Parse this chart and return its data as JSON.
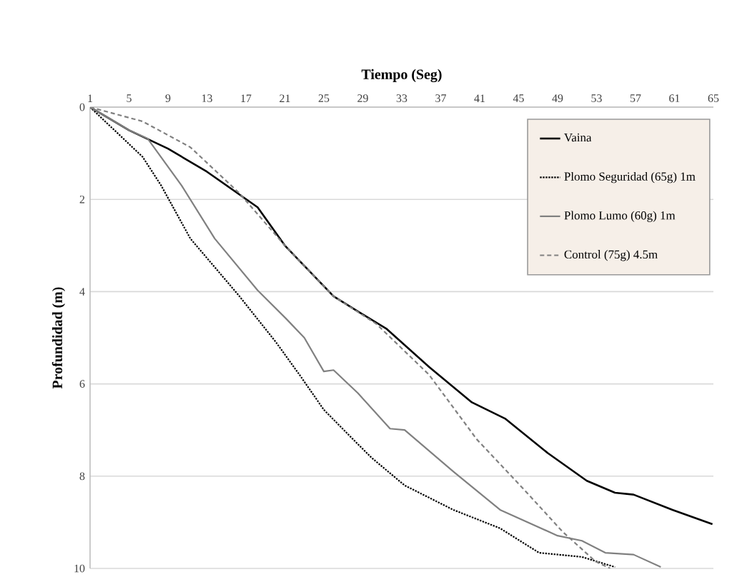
{
  "chart_data": {
    "type": "line",
    "xlabel": "Tiempo (Seg)",
    "ylabel": "Profundidad (m)",
    "xlim": [
      1,
      65
    ],
    "xticks": [
      1,
      5,
      9,
      13,
      17,
      21,
      25,
      29,
      33,
      37,
      41,
      45,
      49,
      53,
      57,
      61,
      65
    ],
    "ylim": [
      10,
      0
    ],
    "yticks": [
      0,
      2,
      4,
      6,
      8,
      10
    ],
    "grid": "y",
    "legend": "top right",
    "marker": "none",
    "series": [
      {
        "name": "Vaina",
        "color": "#000000",
        "line_style": "solid",
        "x": [
          1,
          5,
          9,
          13,
          18.2,
          21,
          26,
          28.5,
          31.4,
          35.8,
          40.2,
          43.6,
          48,
          52,
          54.9,
          56.8,
          60.8,
          64.9
        ],
        "values": [
          0,
          0.5,
          0.9,
          1.4,
          2.17,
          3.0,
          4.1,
          4.43,
          4.8,
          5.63,
          6.4,
          6.75,
          7.5,
          8.1,
          8.36,
          8.4,
          8.73,
          9.04
        ]
      },
      {
        "name": "Plomo Seguridad  (65g) 1m",
        "color": "#000000",
        "line_style": "dotted",
        "x": [
          1,
          3,
          6.4,
          8.3,
          11.3,
          16.3,
          20.1,
          22.6,
          25,
          28,
          29.9,
          33.3,
          38.3,
          43.1,
          47.1,
          51.5,
          54.9
        ],
        "values": [
          0,
          0.4,
          1.08,
          1.7,
          2.85,
          4.09,
          5.1,
          5.83,
          6.56,
          7.2,
          7.6,
          8.2,
          8.73,
          9.13,
          9.66,
          9.75,
          9.97
        ]
      },
      {
        "name": "Plomo Lumo (60g) 1m",
        "color": "#808080",
        "line_style": "solid",
        "x": [
          1,
          5,
          6.9,
          10.4,
          13.8,
          18.2,
          21.1,
          23,
          25,
          26,
          28.5,
          31.8,
          33.3,
          38.3,
          43.1,
          49,
          51.5,
          53.9,
          56.8,
          59.6
        ],
        "values": [
          0,
          0.5,
          0.68,
          1.7,
          2.85,
          3.97,
          4.58,
          5.0,
          5.73,
          5.7,
          6.2,
          6.97,
          7.0,
          7.9,
          8.73,
          9.29,
          9.4,
          9.66,
          9.7,
          9.97
        ]
      },
      {
        "name": "Control (75g) 4.5m",
        "color": "#808080",
        "line_style": "dashed",
        "x": [
          1,
          6.4,
          11.3,
          16.3,
          21,
          26,
          30.4,
          35.8,
          40.7,
          45.6,
          49.5,
          52.9,
          54.4
        ],
        "values": [
          0,
          0.31,
          0.87,
          1.86,
          3.0,
          4.1,
          4.7,
          5.8,
          7.2,
          8.3,
          9.2,
          9.85,
          10.0
        ]
      }
    ]
  }
}
